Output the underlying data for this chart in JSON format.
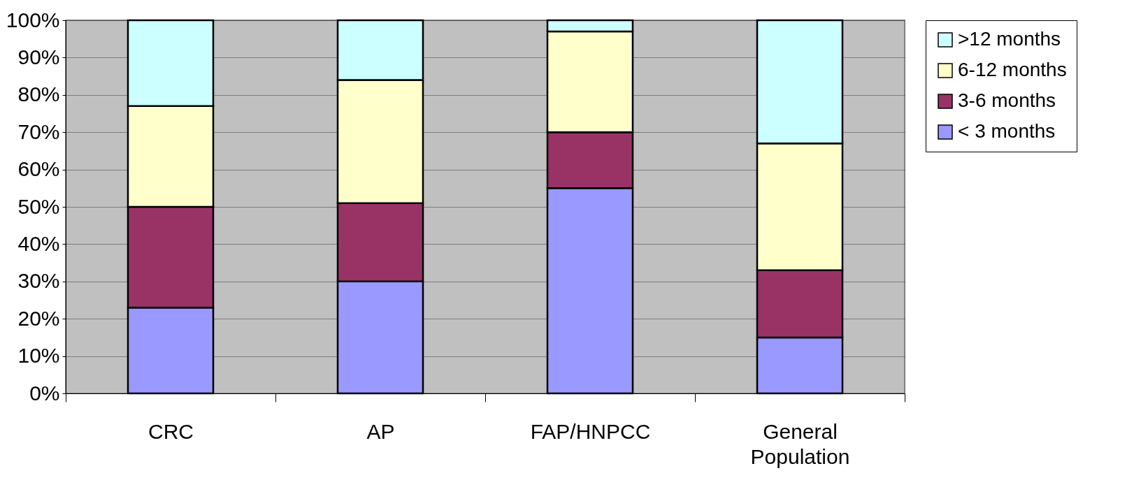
{
  "chart_data": {
    "type": "bar",
    "stacked": true,
    "categories": [
      "CRC",
      "AP",
      "FAP/HNPCC",
      "General Population"
    ],
    "series": [
      {
        "name": "< 3 months",
        "color": "#9999ff",
        "values": [
          23,
          30,
          55,
          15
        ]
      },
      {
        "name": "3-6 months",
        "color": "#993366",
        "values": [
          27,
          21,
          15,
          18
        ]
      },
      {
        "name": "6-12 months",
        "color": "#ffffcc",
        "values": [
          27,
          33,
          27,
          34
        ]
      },
      {
        "name": ">12 months",
        "color": "#ccffff",
        "values": [
          23,
          16,
          3,
          33
        ]
      }
    ],
    "ylim": [
      0,
      100
    ],
    "yticks": [
      {
        "value": 0,
        "label": "0%"
      },
      {
        "value": 10,
        "label": "10%"
      },
      {
        "value": 20,
        "label": "20%"
      },
      {
        "value": 30,
        "label": "30%"
      },
      {
        "value": 40,
        "label": "40%"
      },
      {
        "value": 50,
        "label": "50%"
      },
      {
        "value": 60,
        "label": "60%"
      },
      {
        "value": 70,
        "label": "70%"
      },
      {
        "value": 80,
        "label": "80%"
      },
      {
        "value": 90,
        "label": "90%"
      },
      {
        "value": 100,
        "label": "100%"
      }
    ],
    "grid": "y",
    "legend": "right"
  }
}
